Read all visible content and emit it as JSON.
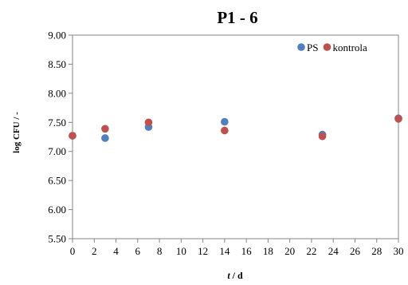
{
  "chart_data": {
    "type": "scatter",
    "title": "P1 - 6",
    "ylabel": "log CFU / -",
    "xlabel": {
      "variable": "t",
      "unit": " / d"
    },
    "xlim": [
      0,
      30
    ],
    "ylim": [
      5.5,
      9.0
    ],
    "xticks": [
      0,
      2,
      4,
      6,
      8,
      10,
      12,
      14,
      16,
      18,
      20,
      22,
      24,
      26,
      28,
      30
    ],
    "yticks": [
      "5.50",
      "6.00",
      "6.50",
      "7.00",
      "7.50",
      "8.00",
      "8.50",
      "9.00"
    ],
    "grid": false,
    "legend_position": "top-right",
    "series": [
      {
        "name": "PS",
        "color": "#4F81BD",
        "points": [
          {
            "x": 0,
            "y": 7.27
          },
          {
            "x": 3,
            "y": 7.23
          },
          {
            "x": 7,
            "y": 7.42
          },
          {
            "x": 14,
            "y": 7.51
          },
          {
            "x": 23,
            "y": 7.29
          },
          {
            "x": 30,
            "y": 7.57
          }
        ]
      },
      {
        "name": "kontrola",
        "color": "#C0504D",
        "points": [
          {
            "x": 0,
            "y": 7.27
          },
          {
            "x": 3,
            "y": 7.39
          },
          {
            "x": 7,
            "y": 7.5
          },
          {
            "x": 14,
            "y": 7.36
          },
          {
            "x": 23,
            "y": 7.26
          },
          {
            "x": 30,
            "y": 7.56
          }
        ]
      }
    ]
  }
}
